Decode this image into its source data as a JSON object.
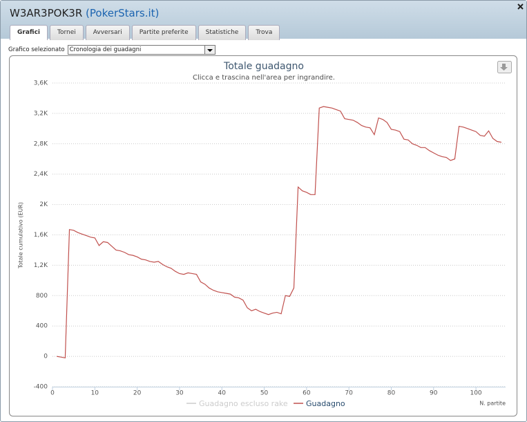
{
  "header": {
    "name": "W3AR3POK3R",
    "site": "(PokerStars.it)"
  },
  "tabs": [
    {
      "label": "Grafici",
      "active": true
    },
    {
      "label": "Tornei",
      "active": false
    },
    {
      "label": "Avversari",
      "active": false
    },
    {
      "label": "Partite preferite",
      "active": false
    },
    {
      "label": "Statistiche",
      "active": false
    },
    {
      "label": "Trova",
      "active": false
    }
  ],
  "selector": {
    "label": "Grafico selezionato",
    "value": "Cronologia dei guadagni"
  },
  "chart_data": {
    "type": "line",
    "title": "Totale guadagno",
    "subtitle": "Clicca e trascina nell'area per ingrandire.",
    "y_label": "Totale cumulativo (EUR)",
    "x_label": "N. partite",
    "grid": true,
    "xlim": [
      0,
      107
    ],
    "xticks": [
      0,
      10,
      20,
      30,
      40,
      50,
      60,
      70,
      80,
      90,
      100
    ],
    "ylim": [
      -400,
      3600
    ],
    "yticks": [
      -400,
      0,
      400,
      800,
      {
        "value": 1200,
        "label": "1,2K"
      },
      {
        "value": 1600,
        "label": "1,6K"
      },
      {
        "value": 2000,
        "label": "2K"
      },
      {
        "value": 2400,
        "label": "2,4K"
      },
      {
        "value": 2800,
        "label": "2,8K"
      },
      {
        "value": 3200,
        "label": "3,2K"
      },
      {
        "value": 3600,
        "label": "3,6K"
      }
    ],
    "x": [
      1,
      2,
      3,
      4,
      5,
      6,
      7,
      8,
      9,
      10,
      11,
      12,
      13,
      14,
      15,
      16,
      17,
      18,
      19,
      20,
      21,
      22,
      23,
      24,
      25,
      26,
      27,
      28,
      29,
      30,
      31,
      32,
      33,
      34,
      35,
      36,
      37,
      38,
      39,
      40,
      41,
      42,
      43,
      44,
      45,
      46,
      47,
      48,
      49,
      50,
      51,
      52,
      53,
      54,
      55,
      56,
      57,
      58,
      59,
      60,
      61,
      62,
      63,
      64,
      65,
      66,
      67,
      68,
      69,
      70,
      71,
      72,
      73,
      74,
      75,
      76,
      77,
      78,
      79,
      80,
      81,
      82,
      83,
      84,
      85,
      86,
      87,
      88,
      89,
      90,
      91,
      92,
      93,
      94,
      95,
      96,
      97,
      98,
      99,
      100,
      101,
      102,
      103,
      104,
      105,
      106
    ],
    "series": [
      {
        "name": "Guadagno escluso rake",
        "color": "#cccccc",
        "visible": false
      },
      {
        "name": "Guadagno",
        "color": "#c0504d",
        "visible": true,
        "values": [
          0,
          -10,
          -20,
          1670,
          1660,
          1630,
          1610,
          1590,
          1570,
          1560,
          1460,
          1510,
          1500,
          1450,
          1400,
          1390,
          1370,
          1340,
          1330,
          1310,
          1280,
          1270,
          1250,
          1240,
          1250,
          1210,
          1180,
          1160,
          1120,
          1090,
          1080,
          1100,
          1090,
          1080,
          980,
          950,
          900,
          870,
          850,
          840,
          830,
          820,
          780,
          770,
          740,
          640,
          600,
          620,
          590,
          570,
          550,
          570,
          580,
          560,
          800,
          790,
          900,
          2230,
          2180,
          2160,
          2130,
          2130,
          3270,
          3290,
          3280,
          3270,
          3250,
          3230,
          3130,
          3120,
          3110,
          3080,
          3040,
          3020,
          3010,
          2920,
          3140,
          3120,
          3080,
          2990,
          2980,
          2960,
          2860,
          2850,
          2800,
          2780,
          2750,
          2750,
          2710,
          2680,
          2650,
          2630,
          2620,
          2580,
          2600,
          3030,
          3020,
          3000,
          2980,
          2960,
          2910,
          2900,
          2970,
          2870,
          2830,
          2820
        ]
      }
    ]
  }
}
